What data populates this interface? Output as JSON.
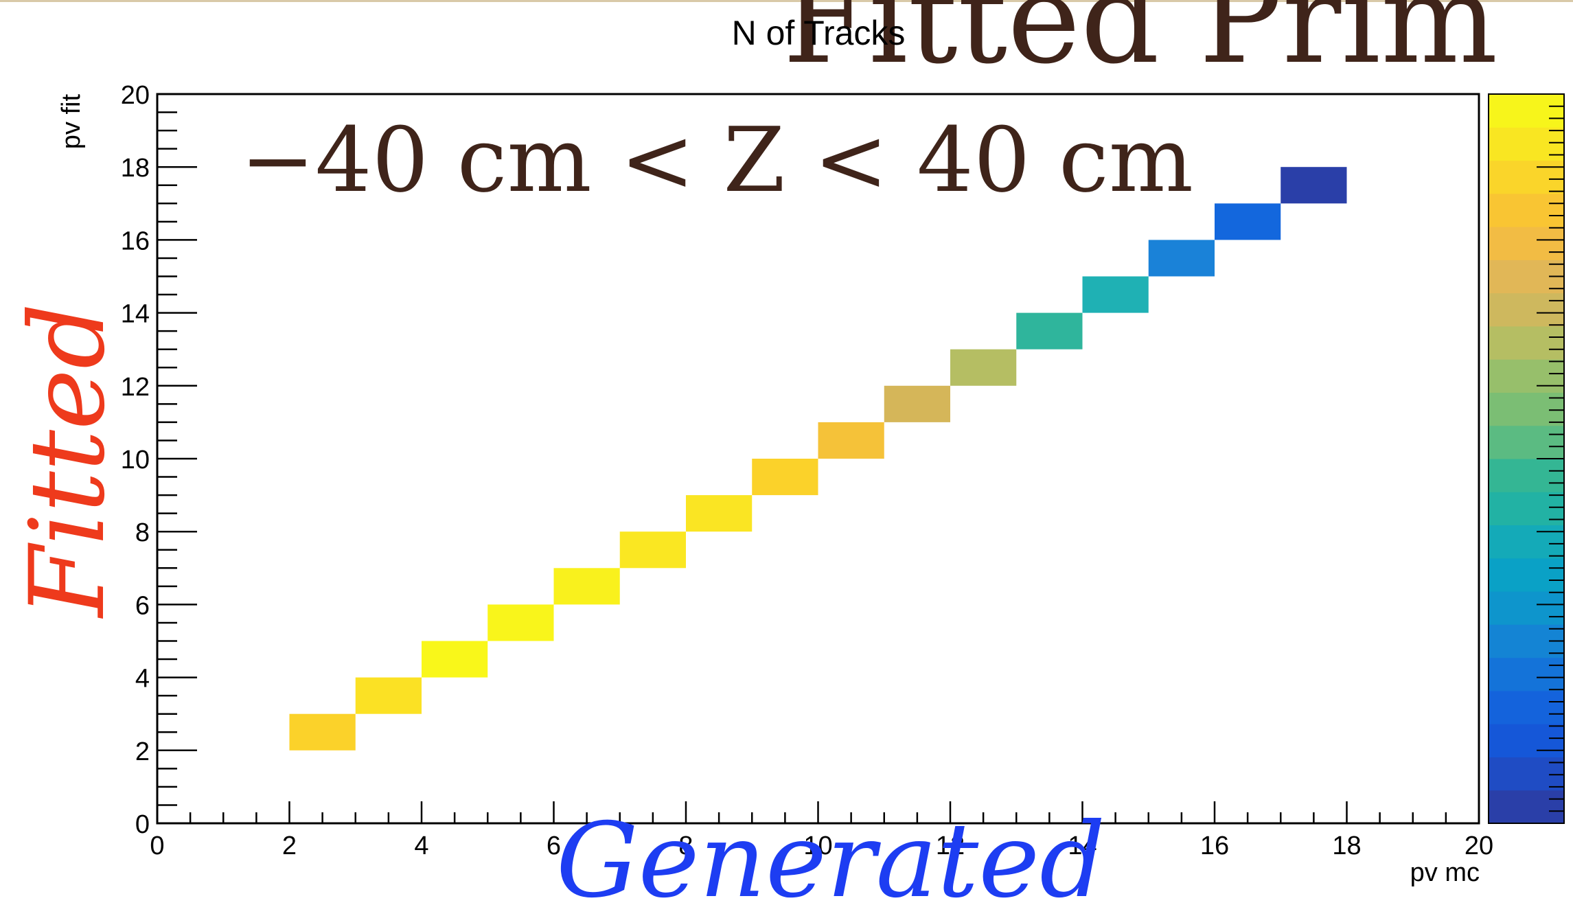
{
  "chart_data": {
    "type": "heatmap",
    "title": "N of Tracks",
    "xlabel": "pv mc",
    "ylabel": "pv fit",
    "xlim": [
      0,
      20
    ],
    "ylim": [
      0,
      20
    ],
    "x_ticks": [
      "0",
      "2",
      "4",
      "6",
      "8",
      "10",
      "12",
      "14",
      "16",
      "18",
      "20"
    ],
    "y_ticks": [
      "0",
      "2",
      "4",
      "6",
      "8",
      "10",
      "12",
      "14",
      "16",
      "18",
      "20"
    ],
    "grid": false,
    "colorbar": true,
    "cells": [
      {
        "x": 2,
        "y": 2,
        "color": "#FBD22A"
      },
      {
        "x": 3,
        "y": 3,
        "color": "#FBE124"
      },
      {
        "x": 4,
        "y": 4,
        "color": "#F9F71A"
      },
      {
        "x": 5,
        "y": 5,
        "color": "#F9F51B"
      },
      {
        "x": 6,
        "y": 6,
        "color": "#F9F11D"
      },
      {
        "x": 7,
        "y": 7,
        "color": "#FAE722"
      },
      {
        "x": 8,
        "y": 8,
        "color": "#FAE523"
      },
      {
        "x": 9,
        "y": 9,
        "color": "#FBD22A"
      },
      {
        "x": 10,
        "y": 10,
        "color": "#F5C239"
      },
      {
        "x": 11,
        "y": 11,
        "color": "#D5B659"
      },
      {
        "x": 12,
        "y": 12,
        "color": "#B5BE63"
      },
      {
        "x": 13,
        "y": 13,
        "color": "#2FB59C"
      },
      {
        "x": 14,
        "y": 14,
        "color": "#1FB1B4"
      },
      {
        "x": 15,
        "y": 15,
        "color": "#1A82D8"
      },
      {
        "x": 16,
        "y": 16,
        "color": "#1367DD"
      },
      {
        "x": 17,
        "y": 17,
        "color": "#2A3FA8"
      }
    ],
    "palette": [
      "#2A3FA8",
      "#1F4CC4",
      "#1557D8",
      "#1463DC",
      "#1473D9",
      "#1484D4",
      "#0E95CC",
      "#0AA1C6",
      "#14AAB8",
      "#22B2A4",
      "#34B694",
      "#5BBB82",
      "#7BBE74",
      "#97BF6B",
      "#B5BE63",
      "#CEB85E",
      "#E1B757",
      "#F2BC44",
      "#F9C533",
      "#FAD52A",
      "#F9E622",
      "#F7F51B"
    ],
    "annotations": {
      "range": "−40 cm < Z < 40 cm",
      "fitted": "Fitted",
      "generated": "Generated",
      "top_right": "Fitted Prim"
    }
  }
}
